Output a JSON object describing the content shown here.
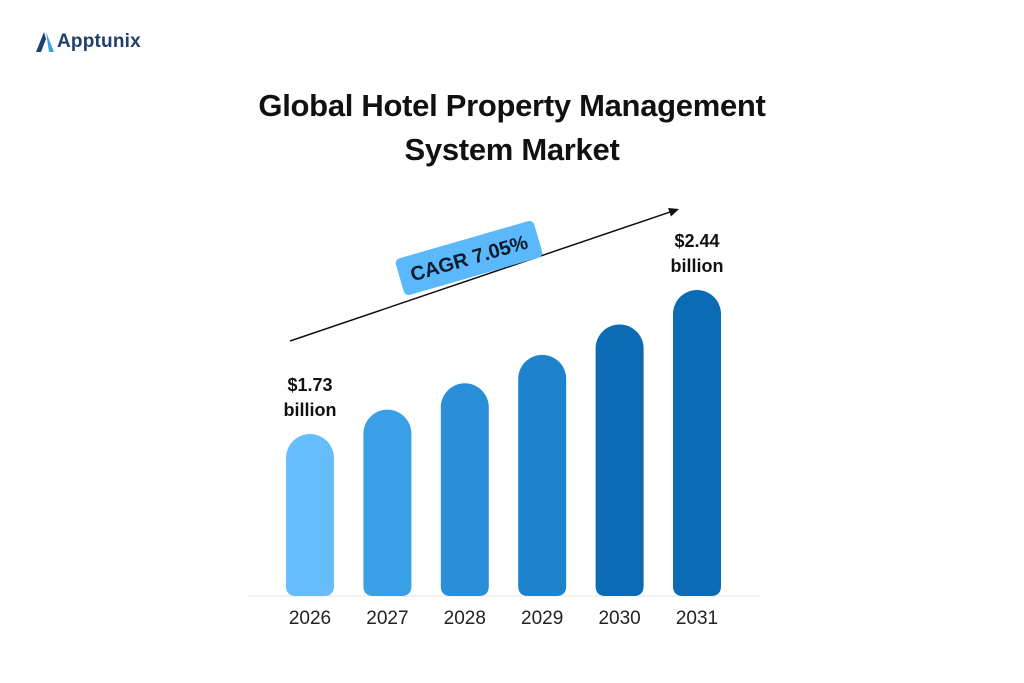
{
  "brand": {
    "name": "Apptunix"
  },
  "chart_data": {
    "type": "bar",
    "title_lines": [
      "Global Hotel Property Management",
      "System Market"
    ],
    "categories": [
      "2026",
      "2027",
      "2028",
      "2029",
      "2030",
      "2031"
    ],
    "values": [
      1.73,
      1.85,
      1.98,
      2.12,
      2.27,
      2.44
    ],
    "unit": "billion",
    "data_labels": [
      {
        "index": 0,
        "lines": [
          "$1.73",
          "billion"
        ]
      },
      {
        "index": 5,
        "lines": [
          "$2.44",
          "billion"
        ]
      }
    ],
    "annotation": "CAGR 7.05%",
    "colors": [
      "#66bdfb",
      "#3aa0e6",
      "#2a8ed9",
      "#1d83cc",
      "#0b6bb5",
      "#0b6bb5"
    ],
    "badge_color": "#5ab8fb",
    "ylim": [
      0,
      2.44
    ],
    "grid": false,
    "legend": "none"
  }
}
